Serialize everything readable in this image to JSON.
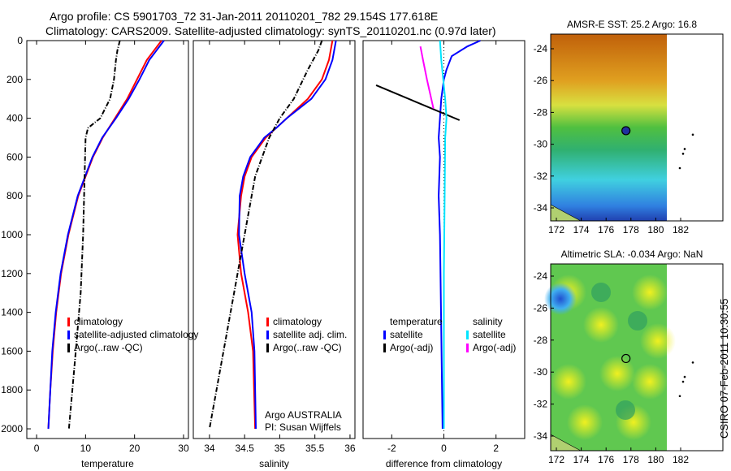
{
  "title_line1": "Argo profile: CS 5901703_72 31-Jan-2011 20110201_782 29.154S 177.618E",
  "title_line2": "Climatology: CARS2009. Satellite-adjusted climatology: synTS_20110201.nc (0.97d later)",
  "footer": "CSIRO 07-Feb-2011 10:30:55",
  "chart_data": [
    {
      "type": "line",
      "xlabel": "temperature",
      "ylabel": "",
      "xlim": [
        -2,
        31
      ],
      "ylim": [
        2050,
        0
      ],
      "xticks": [
        "0",
        "10",
        "20",
        "30"
      ],
      "yticks": [
        "0",
        "200",
        "400",
        "600",
        "800",
        "1000",
        "1200",
        "1400",
        "1600",
        "1800",
        "2000"
      ],
      "legend": [
        "climatology",
        "satellite-adjusted climatology",
        "Argo(..raw -QC)"
      ],
      "legend_position": "bottom-right",
      "series": [
        {
          "name": "climatology",
          "color": "#ff0000",
          "depth": [
            0,
            50,
            100,
            200,
            300,
            400,
            500,
            600,
            800,
            1000,
            1200,
            1400,
            1600,
            1800,
            2000
          ],
          "values": [
            25.5,
            24,
            22.5,
            20.5,
            18.5,
            16,
            13.5,
            11.5,
            8.5,
            6.5,
            5,
            4,
            3.3,
            2.8,
            2.4
          ]
        },
        {
          "name": "satellite-adjusted climatology",
          "color": "#0000ff",
          "depth": [
            0,
            50,
            100,
            200,
            300,
            400,
            500,
            600,
            800,
            1000,
            1200,
            1400,
            1600,
            1800,
            2000
          ],
          "values": [
            26,
            24.5,
            23,
            21,
            18.8,
            16.2,
            13.4,
            11.4,
            8.4,
            6.4,
            4.9,
            3.9,
            3.2,
            2.8,
            2.4
          ]
        },
        {
          "name": "Argo(..raw -QC)",
          "color": "#000000",
          "dash": true,
          "depth": [
            0,
            50,
            100,
            200,
            300,
            400,
            450,
            500,
            700,
            1000,
            1300,
            1600,
            1800,
            2000
          ],
          "values": [
            17,
            16.5,
            16.2,
            15.8,
            15,
            13,
            10.5,
            10,
            9.8,
            9.5,
            9,
            8,
            7.3,
            6.6
          ]
        }
      ]
    },
    {
      "type": "line",
      "xlabel": "salinity",
      "xlim": [
        33.77,
        36.07
      ],
      "ylim": [
        2050,
        0
      ],
      "xticks": [
        "34",
        "34.5",
        "35",
        "35.5",
        "36"
      ],
      "legend": [
        "climatology",
        "satellite adj. clim.",
        "Argo(..raw -QC)"
      ],
      "legend_position": "bottom-right",
      "annotation": [
        "Argo AUSTRALIA",
        "PI: Susan Wijffels"
      ],
      "series": [
        {
          "name": "climatology",
          "color": "#ff0000",
          "depth": [
            0,
            100,
            200,
            300,
            400,
            450,
            500,
            600,
            700,
            800,
            1000,
            1200,
            1400,
            1600,
            2000
          ],
          "values": [
            35.75,
            35.7,
            35.6,
            35.4,
            35.1,
            34.95,
            34.8,
            34.6,
            34.5,
            34.45,
            34.4,
            34.45,
            34.55,
            34.62,
            34.65
          ]
        },
        {
          "name": "satellite adj. clim.",
          "color": "#0000ff",
          "depth": [
            0,
            100,
            200,
            300,
            400,
            450,
            500,
            600,
            700,
            800,
            1000,
            1200,
            1400,
            1600,
            2000
          ],
          "values": [
            35.8,
            35.75,
            35.65,
            35.45,
            35.1,
            34.95,
            34.78,
            34.58,
            34.48,
            34.43,
            34.42,
            34.5,
            34.6,
            34.64,
            34.66
          ]
        },
        {
          "name": "Argo(..raw -QC)",
          "color": "#000000",
          "dash": true,
          "depth": [
            0,
            50,
            150,
            300,
            400,
            500,
            700,
            900,
            1200,
            1500,
            1800,
            2000
          ],
          "values": [
            35.6,
            35.55,
            35.4,
            35.2,
            35.0,
            34.85,
            34.65,
            34.55,
            34.4,
            34.25,
            34.1,
            34.0
          ]
        }
      ]
    },
    {
      "type": "line",
      "xlabel": "difference from climatology",
      "xlim": [
        -3.1,
        3.1
      ],
      "ylim": [
        2050,
        0
      ],
      "xticks": [
        "-2",
        "0",
        "2"
      ],
      "legend": [
        {
          "head": "temperature",
          "items": [
            "satellite",
            "Argo(-adj)"
          ]
        },
        {
          "head": "salinity",
          "items": [
            "satellite",
            "Argo(-adj)"
          ]
        }
      ],
      "series": [
        {
          "name": "temperature satellite",
          "color": "#0000ff",
          "depth": [
            0,
            30,
            80,
            150,
            200,
            300,
            400,
            500,
            600,
            800,
            1000,
            1500,
            2000
          ],
          "values": [
            1.4,
            0.9,
            0.3,
            0.1,
            0,
            -0.1,
            -0.15,
            -0.2,
            -0.15,
            -0.2,
            -0.15,
            -0.1,
            -0.05
          ]
        },
        {
          "name": "temperature Argo(-adj)",
          "color": "#000000",
          "depth": [
            230,
            410
          ],
          "values": [
            -2.6,
            0.6
          ]
        },
        {
          "name": "salinity satellite",
          "color": "#00e5ff",
          "depth": [
            0,
            100,
            300,
            400,
            500,
            800,
            1200,
            2000
          ],
          "values": [
            -0.15,
            -0.1,
            0.05,
            0.1,
            0.05,
            0.03,
            0.0,
            0.0
          ]
        },
        {
          "name": "salinity Argo(-adj)",
          "color": "#ff00ff",
          "depth": [
            30,
            100,
            200,
            350
          ],
          "values": [
            -0.9,
            -0.8,
            -0.65,
            -0.4
          ]
        }
      ]
    },
    {
      "type": "heatmap",
      "title": "AMSR-E SST: 25.2 Argo: 16.8",
      "xticks": [
        "172",
        "174",
        "176",
        "178",
        "180",
        "182"
      ],
      "yticks": [
        "-24",
        "-26",
        "-28",
        "-30",
        "-32",
        "-34"
      ],
      "marker": {
        "lon": 177.6,
        "lat": -29.15
      }
    },
    {
      "type": "heatmap",
      "title": "Altimetric SLA: -0.034 Argo: NaN",
      "xticks": [
        "172",
        "174",
        "176",
        "178",
        "180",
        "182"
      ],
      "yticks": [
        "-24",
        "-26",
        "-28",
        "-30",
        "-32",
        "-34"
      ],
      "marker": {
        "lon": 177.6,
        "lat": -29.15
      }
    }
  ]
}
